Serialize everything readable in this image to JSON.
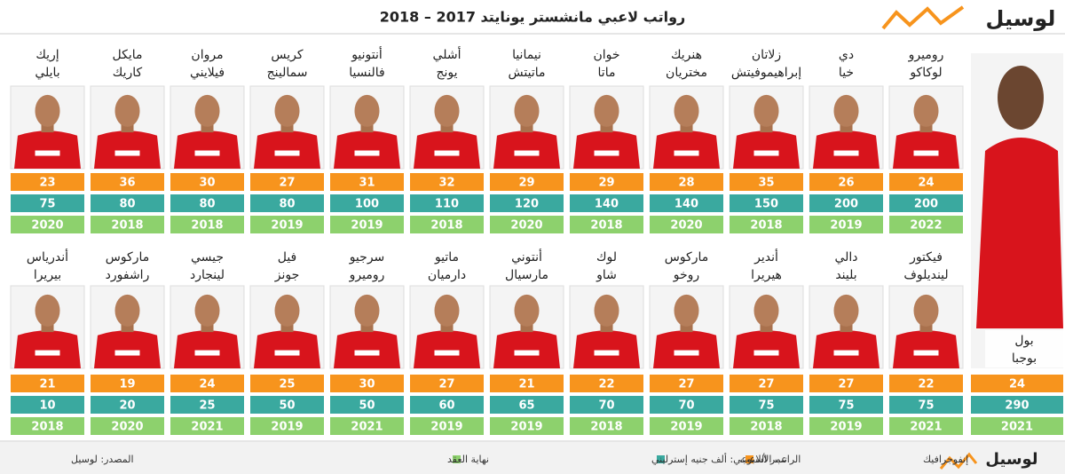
{
  "header": {
    "logo": "لوسيل",
    "title": "رواتب لاعبي مانشستر يونايتد 2017 – 2018"
  },
  "rows": [
    [
      {
        "name": [
          "روميرو",
          "لوكاكو"
        ],
        "age": 24,
        "salary": 200,
        "contract": 2022
      },
      {
        "name": [
          "دي",
          "خيا"
        ],
        "age": 26,
        "salary": 200,
        "contract": 2019
      },
      {
        "name": [
          "زلاتان",
          "إبراهيموفيتش"
        ],
        "age": 35,
        "salary": 150,
        "contract": 2018
      },
      {
        "name": [
          "هنريك",
          "مختريان"
        ],
        "age": 28,
        "salary": 140,
        "contract": 2020
      },
      {
        "name": [
          "خوان",
          "ماتا"
        ],
        "age": 29,
        "salary": 140,
        "contract": 2018
      },
      {
        "name": [
          "نيمانيا",
          "ماتيتش"
        ],
        "age": 29,
        "salary": 120,
        "contract": 2020
      },
      {
        "name": [
          "أشلي",
          "يونج"
        ],
        "age": 32,
        "salary": 110,
        "contract": 2018
      },
      {
        "name": [
          "أنتونيو",
          "فالنسيا"
        ],
        "age": 31,
        "salary": 100,
        "contract": 2019
      },
      {
        "name": [
          "كريس",
          "سمالينج"
        ],
        "age": 27,
        "salary": 80,
        "contract": 2019
      },
      {
        "name": [
          "مروان",
          "فيلايني"
        ],
        "age": 30,
        "salary": 80,
        "contract": 2018
      },
      {
        "name": [
          "مايكل",
          "كاريك"
        ],
        "age": 36,
        "salary": 80,
        "contract": 2018
      },
      {
        "name": [
          "إريك",
          "بايلي"
        ],
        "age": 23,
        "salary": 75,
        "contract": 2020
      }
    ],
    [
      {
        "name": [
          "فيكتور",
          "لينديلوف"
        ],
        "age": 22,
        "salary": 75,
        "contract": 2021
      },
      {
        "name": [
          "دالي",
          "بليند"
        ],
        "age": 27,
        "salary": 75,
        "contract": 2019
      },
      {
        "name": [
          "أندير",
          "هيريرا"
        ],
        "age": 27,
        "salary": 75,
        "contract": 2018
      },
      {
        "name": [
          "ماركوس",
          "روخو"
        ],
        "age": 27,
        "salary": 70,
        "contract": 2019
      },
      {
        "name": [
          "لوك",
          "شاو"
        ],
        "age": 22,
        "salary": 70,
        "contract": 2018
      },
      {
        "name": [
          "أنتوني",
          "مارسيال"
        ],
        "age": 21,
        "salary": 65,
        "contract": 2019
      },
      {
        "name": [
          "ماتيو",
          "دارميان"
        ],
        "age": 27,
        "salary": 60,
        "contract": 2019
      },
      {
        "name": [
          "سرجيو",
          "روميرو"
        ],
        "age": 30,
        "salary": 50,
        "contract": 2021
      },
      {
        "name": [
          "فيل",
          "جونز"
        ],
        "age": 25,
        "salary": 50,
        "contract": 2019
      },
      {
        "name": [
          "جيسي",
          "لينجارد"
        ],
        "age": 24,
        "salary": 25,
        "contract": 2021
      },
      {
        "name": [
          "ماركوس",
          "راشفورد"
        ],
        "age": 19,
        "salary": 20,
        "contract": 2020
      },
      {
        "name": [
          "أندرياس",
          "بيريرا"
        ],
        "age": 21,
        "salary": 10,
        "contract": 2018
      }
    ]
  ],
  "featured": {
    "name": [
      "بول",
      "بوجبا"
    ],
    "age": 24,
    "salary": 290,
    "contract": 2021
  },
  "legend": [
    {
      "label": "عمر اللاعب",
      "color": "#f7941d"
    },
    {
      "label": "الراتب الأسبوعي: ألف جنيه إسترليني",
      "color": "#3aa99f"
    },
    {
      "label": "نهاية العقد",
      "color": "#8dd16d"
    }
  ],
  "footer": {
    "logo": "لوسيل",
    "label": "إنفوجرافيك",
    "source": "المصدر: لوسيل"
  }
}
